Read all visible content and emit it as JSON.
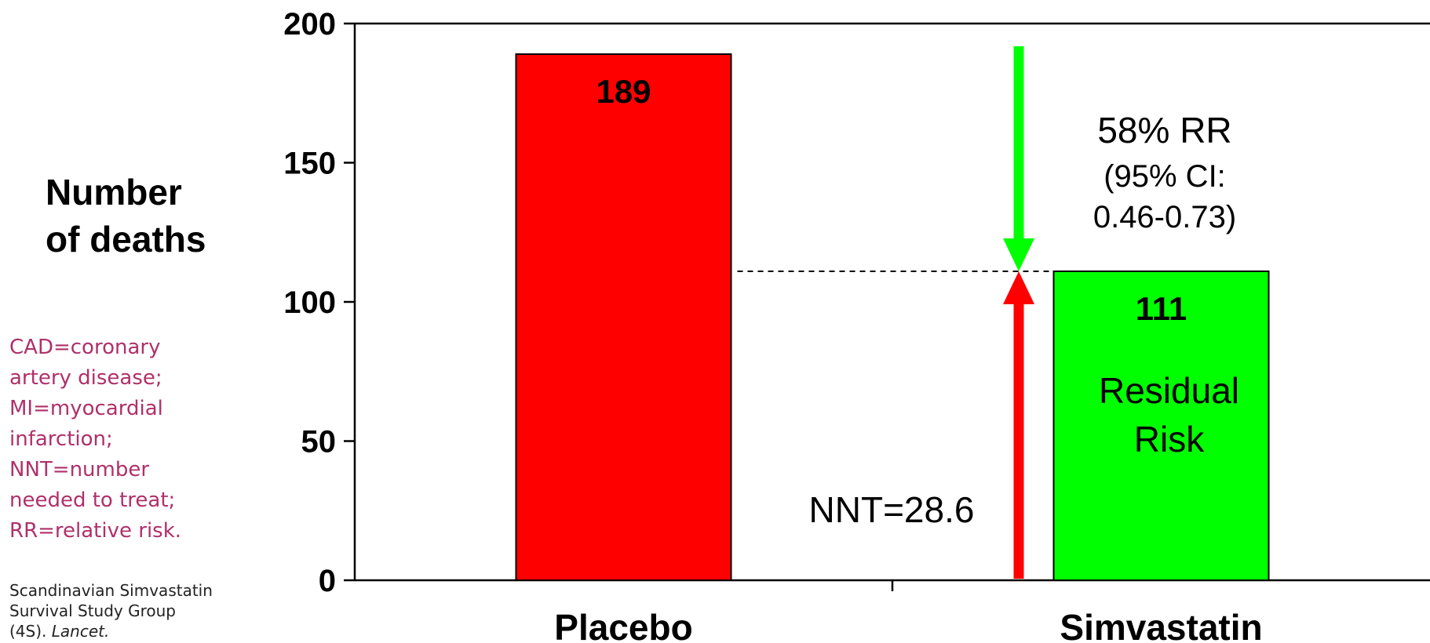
{
  "chart_data": {
    "type": "bar",
    "ylabel": [
      "Number",
      "of deaths"
    ],
    "ylim": [
      0,
      200
    ],
    "yticks": [
      0,
      50,
      100,
      150,
      200
    ],
    "categories": [
      "Placebo",
      "Simvastatin"
    ],
    "series": [
      {
        "values": [
          189,
          111
        ],
        "colors": [
          "#ff0000",
          "#00ff00"
        ]
      }
    ],
    "data_labels": [
      "189",
      "111"
    ],
    "annotations": {
      "rr_line1": "58% RR",
      "rr_line2": "(95% CI:",
      "rr_line3": "0.46-0.73)",
      "residual_line1": "Residual",
      "residual_line2": "Risk",
      "nnt": "NNT=28.6"
    },
    "reference_line_value": 111,
    "arrow_colors": {
      "down": "#00ff00",
      "up": "#ff0000"
    },
    "grid": false
  },
  "abbreviations": [
    "CAD=coronary",
    "artery disease;",
    "MI=myocardial",
    "infarction;",
    "NNT=number",
    "needed to treat;",
    "RR=relative risk."
  ],
  "citation": {
    "line1": "Scandinavian Simvastatin",
    "line2": "Survival Study Group",
    "line3_prefix": "(4S). ",
    "line3_journal": "Lancet."
  }
}
